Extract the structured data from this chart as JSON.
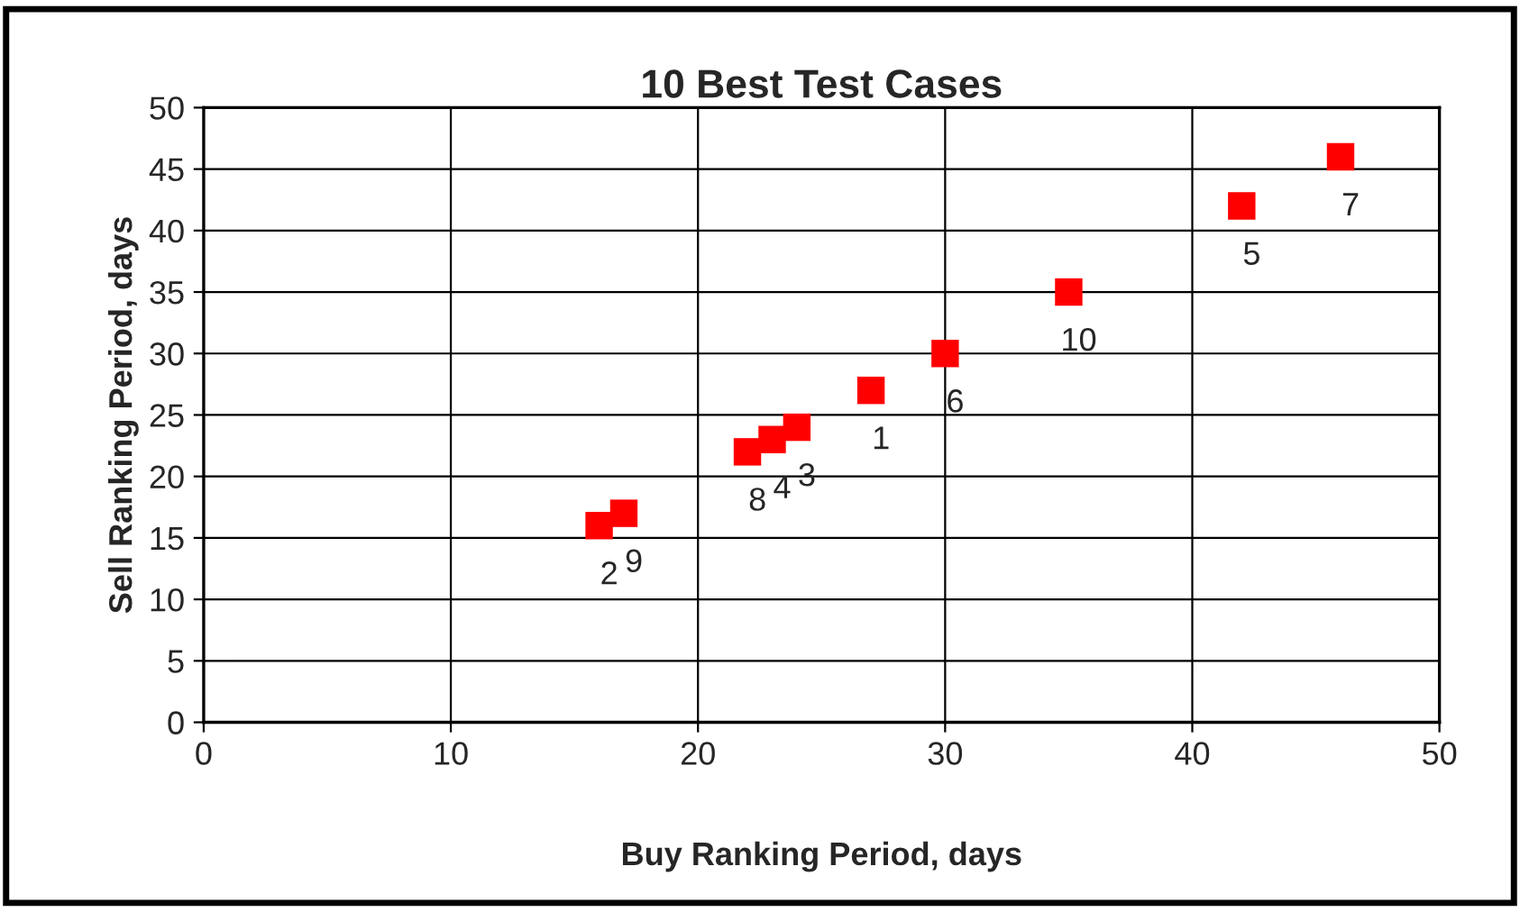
{
  "chart_data": {
    "type": "scatter",
    "title": "10 Best Test Cases",
    "xlabel": "Buy Ranking Period, days",
    "ylabel": "Sell Ranking Period, days",
    "x": [
      27,
      16,
      24,
      23,
      42,
      30,
      46,
      22,
      17,
      35
    ],
    "series": [
      {
        "color": "#ff0000",
        "values": [
          27,
          16,
          24,
          23,
          42,
          30,
          46,
          22,
          17,
          35
        ]
      }
    ],
    "annotations": [
      {
        "text": "1",
        "x": 27,
        "y": 27
      },
      {
        "text": "2",
        "x": 16,
        "y": 16
      },
      {
        "text": "3",
        "x": 24,
        "y": 24
      },
      {
        "text": "4",
        "x": 23,
        "y": 23
      },
      {
        "text": "5",
        "x": 42,
        "y": 42
      },
      {
        "text": "6",
        "x": 30,
        "y": 30
      },
      {
        "text": "7",
        "x": 46,
        "y": 46
      },
      {
        "text": "8",
        "x": 22,
        "y": 22
      },
      {
        "text": "9",
        "x": 17,
        "y": 17
      },
      {
        "text": "10",
        "x": 35,
        "y": 35
      }
    ],
    "xlim": [
      0,
      50
    ],
    "xticks": [
      0,
      10,
      20,
      30,
      40,
      50
    ],
    "ylim": [
      0,
      50
    ],
    "yticks": [
      0,
      5,
      10,
      15,
      20,
      25,
      30,
      35,
      40,
      45,
      50
    ],
    "grid": true,
    "marker": "square",
    "legend": false
  }
}
